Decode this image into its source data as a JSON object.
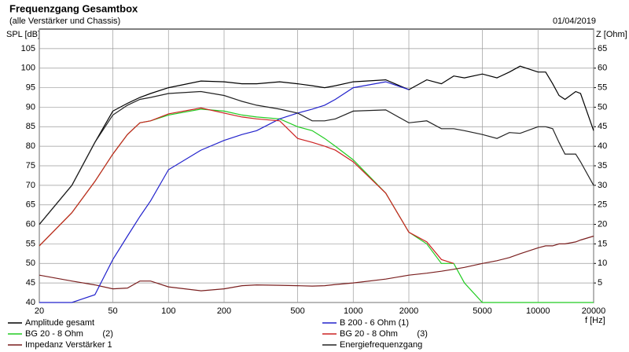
{
  "chart_data": {
    "type": "line",
    "title": "Frequenzgang Gesamtbox",
    "subtitle": "(alle Verstärker und Chassis)",
    "date": "01/04/2019",
    "ylabel": "SPL [dB]",
    "y2label": "Z [Ohm]",
    "xlabel": "f [Hz]",
    "xscale": "log",
    "grid": true,
    "xlim": [
      20,
      20000
    ],
    "xticks": [
      20,
      50,
      100,
      200,
      500,
      1000,
      2000,
      5000,
      10000,
      20000
    ],
    "ylim": [
      40,
      110
    ],
    "yticks": [
      40,
      45,
      50,
      55,
      60,
      65,
      70,
      75,
      80,
      85,
      90,
      95,
      100,
      105
    ],
    "y2lim": [
      0,
      70
    ],
    "y2ticks": [
      5,
      10,
      15,
      20,
      25,
      30,
      35,
      40,
      45,
      50,
      55,
      60,
      65
    ],
    "x": [
      20,
      30,
      40,
      50,
      60,
      70,
      80,
      100,
      150,
      200,
      250,
      300,
      400,
      500,
      600,
      700,
      800,
      1000,
      1500,
      2000,
      2500,
      3000,
      3500,
      4000,
      5000,
      6000,
      7000,
      8000,
      10000,
      11000,
      12000,
      13000,
      14000,
      16000,
      17000,
      20000
    ],
    "series": [
      {
        "name": "Amplitude gesamt",
        "color": "#000000",
        "values": [
          60,
          70,
          81,
          89,
          91,
          92.5,
          93.5,
          95,
          96.7,
          96.5,
          96,
          96,
          96.5,
          96,
          95.5,
          95,
          95.5,
          96.5,
          97,
          94.5,
          97,
          96,
          98,
          97.5,
          98.5,
          97.5,
          99,
          100.5,
          99,
          99,
          96,
          93,
          92,
          94,
          93.5,
          84
        ]
      },
      {
        "name": "BG 20 - 8 Ohm        (2)",
        "color": "#22cc22",
        "values": [
          54.5,
          63,
          71,
          78,
          83,
          86,
          86.5,
          88,
          89.5,
          89,
          88,
          87.5,
          87,
          85,
          84,
          82,
          80,
          76.5,
          68,
          58,
          55,
          50,
          50,
          45,
          40,
          40,
          40,
          40,
          40,
          40,
          40,
          40,
          40,
          40,
          40,
          40
        ]
      },
      {
        "name": "Impedanz Verstärker 1",
        "color": "#7a1f1f",
        "axis": "y2",
        "values": [
          7,
          5.5,
          4.5,
          3.5,
          3.7,
          5.5,
          5.5,
          4,
          3,
          3.5,
          4.3,
          4.5,
          4.4,
          4.3,
          4.2,
          4.3,
          4.6,
          5,
          6,
          7,
          7.5,
          8,
          8.5,
          9,
          10,
          10.7,
          11.5,
          12.5,
          14,
          14.5,
          14.5,
          15,
          15,
          15.5,
          16,
          17
        ]
      },
      {
        "name": "B 200 - 6 Ohm (1)",
        "color": "#2222cc",
        "values": [
          40,
          40,
          42,
          51,
          57,
          62,
          66,
          74,
          79,
          81.5,
          83,
          84,
          87,
          88.5,
          89.5,
          90.5,
          92,
          95,
          96.5,
          94.5,
          null,
          null,
          null,
          null,
          null,
          null,
          null,
          null,
          null,
          null,
          null,
          null,
          null,
          null,
          null,
          null
        ]
      },
      {
        "name": "BG 20 - 8 Ohm        (3)",
        "color": "#cc2222",
        "values": [
          54.5,
          63,
          71,
          78,
          83,
          86,
          86.5,
          88.3,
          89.8,
          88.5,
          87.5,
          87,
          86.5,
          82,
          81,
          80,
          79,
          76,
          68,
          58,
          55.5,
          51,
          50,
          null,
          null,
          null,
          null,
          null,
          null,
          null,
          null,
          null,
          null,
          null,
          null,
          null
        ]
      },
      {
        "name": "Energiefrequenzgang",
        "color": "#222222",
        "values": [
          60,
          70,
          81,
          88,
          90.5,
          92,
          92.5,
          93.5,
          94,
          93,
          91.5,
          90.5,
          89.5,
          88.5,
          86.5,
          86.5,
          87,
          89,
          89.3,
          86,
          86.5,
          84.5,
          84.5,
          84,
          83,
          82,
          83.5,
          83.3,
          85,
          85,
          84.5,
          81,
          78,
          78,
          76,
          70
        ]
      }
    ]
  }
}
